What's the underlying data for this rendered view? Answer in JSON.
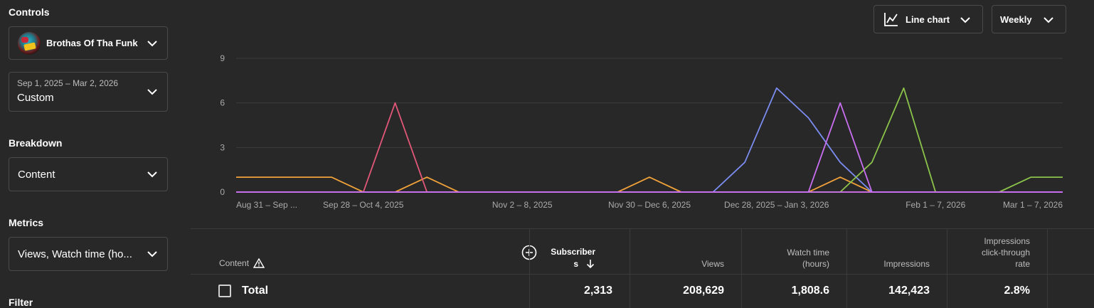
{
  "controls": {
    "title": "Controls",
    "channel_name": "Brothas Of Tha Funk",
    "date_range_value": "Sep 1, 2025 – Mar 2, 2026",
    "date_range_label": "Custom"
  },
  "breakdown": {
    "title": "Breakdown",
    "value": "Content"
  },
  "metrics": {
    "title": "Metrics",
    "value": "Views, Watch time (ho..."
  },
  "filter": {
    "title": "Filter"
  },
  "toolbar": {
    "chart_type": "Line chart",
    "interval": "Weekly"
  },
  "chart_data": {
    "type": "line",
    "x_tick_labels": [
      "Aug 31 – Sep ...",
      "Sep 28 – Oct 4, 2025",
      "Nov 2 – 8, 2025",
      "Nov 30 – Dec 6, 2025",
      "Dec 28, 2025 – Jan 3, 2026",
      "Feb 1 – 7, 2026",
      "Mar 1 – 7, 2026"
    ],
    "x_tick_week_index": [
      0,
      4,
      9,
      13,
      17,
      22,
      26
    ],
    "y_ticks": [
      0,
      3,
      6,
      9
    ],
    "ylim": [
      0,
      9
    ],
    "num_weeks": 27,
    "grid": true,
    "series": [
      {
        "color": "#f0a13a",
        "values": [
          1,
          1,
          1,
          1,
          0,
          0,
          1,
          0,
          0,
          0,
          0,
          0,
          0,
          1,
          0,
          0,
          0,
          0,
          0,
          1,
          0,
          0,
          0,
          0,
          0,
          0,
          0
        ]
      },
      {
        "color": "#e25778",
        "values": [
          0,
          0,
          0,
          0,
          0,
          6,
          0,
          0,
          0,
          0,
          0,
          0,
          0,
          0,
          0,
          0,
          0,
          0,
          0,
          0,
          0,
          0,
          0,
          0,
          0,
          0,
          0
        ]
      },
      {
        "color": "#7b8cf0",
        "values": [
          0,
          0,
          0,
          0,
          0,
          0,
          0,
          0,
          0,
          0,
          0,
          0,
          0,
          0,
          0,
          0,
          2,
          7,
          5,
          2,
          0,
          0,
          0,
          0,
          0,
          0,
          0
        ]
      },
      {
        "color": "#8bc34a",
        "values": [
          0,
          0,
          0,
          0,
          0,
          0,
          0,
          0,
          0,
          0,
          0,
          0,
          0,
          0,
          0,
          0,
          0,
          0,
          0,
          0,
          2,
          7,
          0,
          0,
          0,
          1,
          1
        ]
      },
      {
        "color": "#c86ef0",
        "values": [
          0,
          0,
          0,
          0,
          0,
          0,
          0,
          0,
          0,
          0,
          0,
          0,
          0,
          0,
          0,
          0,
          0,
          0,
          0,
          0,
          0,
          0,
          0,
          0,
          0,
          0,
          0
        ]
      },
      {
        "color": "#c86ef0",
        "values": [
          0,
          0,
          0,
          0,
          0,
          0,
          0,
          0,
          0,
          0,
          0,
          0,
          0,
          0,
          0,
          0,
          0,
          0,
          0,
          6,
          0,
          0,
          0,
          0,
          0,
          0,
          0
        ]
      }
    ]
  },
  "table": {
    "columns": {
      "content": "Content",
      "subscribers_line1": "Subscriber",
      "subscribers_line2": "s",
      "views": "Views",
      "watch_time_line1": "Watch time",
      "watch_time_line2": "(hours)",
      "impressions": "Impressions",
      "ctr_line1": "Impressions",
      "ctr_line2": "click-through",
      "ctr_line3": "rate"
    },
    "total_row": {
      "label": "Total",
      "subscribers": "2,313",
      "views": "208,629",
      "watch_time": "1,808.6",
      "impressions": "142,423",
      "ctr": "2.8%"
    }
  }
}
